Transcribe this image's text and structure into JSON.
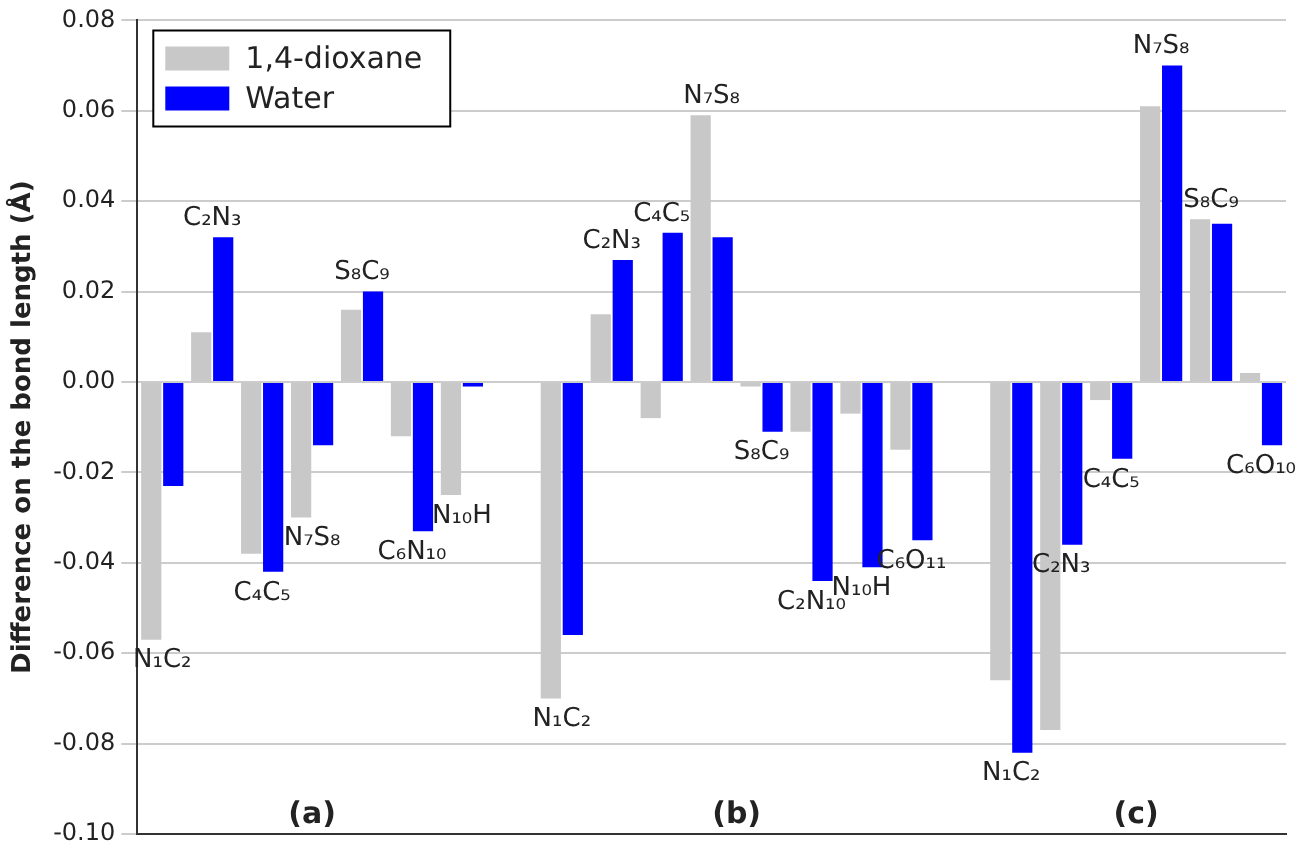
{
  "chart_data": {
    "type": "bar",
    "ylabel": "Difference on the bond length (Å)",
    "categories": [
      null,
      null,
      null,
      null,
      null,
      null,
      null,
      null,
      null,
      null,
      null,
      null,
      null,
      null,
      null,
      null,
      null,
      null,
      null,
      null,
      null,
      null,
      null
    ],
    "series": [
      {
        "name": "1,4-dioxane",
        "color": "#c8c8c8",
        "values": [
          -0.057,
          0.011,
          -0.038,
          -0.03,
          0.016,
          -0.012,
          -0.025,
          null,
          -0.07,
          0.015,
          -0.008,
          0.059,
          -0.001,
          -0.011,
          -0.007,
          -0.015,
          null,
          -0.066,
          -0.077,
          -0.004,
          0.061,
          0.036,
          0.002
        ],
        "value_labels": [
          "N₁C₂",
          null,
          null,
          "N₇S₈",
          null,
          null,
          "N₁₀H",
          null,
          "N₁C₂",
          null,
          null,
          "N₇S₈",
          null,
          null,
          null,
          null,
          null,
          null,
          null,
          null,
          null,
          "S₈C₉",
          null
        ]
      },
      {
        "name": "Water",
        "color": "#0000ff",
        "values": [
          -0.023,
          0.032,
          -0.042,
          -0.014,
          0.02,
          -0.033,
          -0.001,
          null,
          -0.056,
          0.027,
          0.033,
          0.032,
          -0.011,
          -0.044,
          -0.041,
          -0.035,
          null,
          -0.082,
          -0.036,
          -0.017,
          0.07,
          0.035,
          -0.014
        ],
        "value_labels": [
          null,
          "C₂N₃",
          "C₄C₅",
          null,
          "S₈C₉",
          "C₆N₁₀",
          null,
          null,
          null,
          "C₂N₃",
          "C₄C₅",
          null,
          "S₈C₉",
          "C₂N₁₀",
          "N₁₀H",
          "C₆O₁₁",
          null,
          "N₁C₂",
          "C₂N₃",
          "C₄C₅",
          "N₇S₈",
          null,
          "C₆O₁₀"
        ]
      }
    ],
    "ylim": [
      -0.1,
      0.08
    ],
    "yticks": [
      {
        "value": -0.1,
        "label": "-0.10"
      },
      {
        "value": -0.08,
        "label": "-0.08"
      },
      {
        "value": -0.06,
        "label": "-0.06"
      },
      {
        "value": -0.04,
        "label": "-0.04"
      },
      {
        "value": -0.02,
        "label": "-0.02"
      },
      {
        "value": 0,
        "label": "0.00"
      },
      {
        "value": 0.02,
        "label": "0.02"
      },
      {
        "value": 0.04,
        "label": "0.04"
      },
      {
        "value": 0.06,
        "label": "0.06"
      },
      {
        "value": 0.08,
        "label": "0.08"
      }
    ],
    "annotations": [
      "(a)",
      "(b)",
      "(c)"
    ],
    "grid": "y",
    "legend": "top left"
  }
}
